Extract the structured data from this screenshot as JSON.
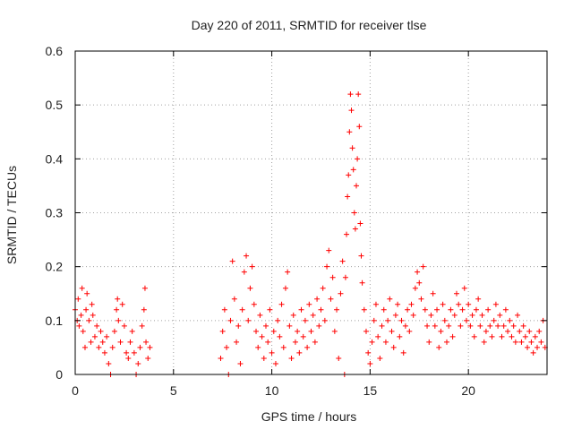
{
  "chart_data": {
    "type": "scatter",
    "title": "Day 220 of 2011, SRMTID for receiver tlse",
    "xlabel": "GPS time / hours",
    "ylabel": "SRMTID / TECUs",
    "xlim": [
      0,
      24
    ],
    "ylim": [
      0,
      0.6
    ],
    "xticks": [
      0,
      5,
      10,
      15,
      20
    ],
    "xtick_labels": [
      "0",
      "5",
      "10",
      "15",
      "20"
    ],
    "yticks": [
      0,
      0.1,
      0.2,
      0.3,
      0.4,
      0.5,
      0.6
    ],
    "ytick_labels": [
      "0",
      "0.1",
      "0.2",
      "0.3",
      "0.4",
      "0.5",
      "0.6"
    ],
    "grid": true,
    "marker": "+",
    "color": "#ff0000",
    "series": [
      {
        "name": "tlse",
        "points": [
          [
            0.0,
            0.12
          ],
          [
            0.1,
            0.1
          ],
          [
            0.15,
            0.14
          ],
          [
            0.2,
            0.09
          ],
          [
            0.3,
            0.11
          ],
          [
            0.35,
            0.16
          ],
          [
            0.4,
            0.08
          ],
          [
            0.5,
            0.05
          ],
          [
            0.55,
            0.12
          ],
          [
            0.6,
            0.15
          ],
          [
            0.7,
            0.1
          ],
          [
            0.8,
            0.06
          ],
          [
            0.85,
            0.13
          ],
          [
            0.9,
            0.11
          ],
          [
            1.0,
            0.07
          ],
          [
            1.1,
            0.09
          ],
          [
            1.2,
            0.05
          ],
          [
            1.3,
            0.08
          ],
          [
            1.4,
            0.06
          ],
          [
            1.5,
            0.04
          ],
          [
            1.6,
            0.07
          ],
          [
            1.7,
            0.02
          ],
          [
            1.8,
            0.0
          ],
          [
            1.9,
            0.05
          ],
          [
            2.0,
            0.08
          ],
          [
            2.1,
            0.12
          ],
          [
            2.15,
            0.14
          ],
          [
            2.2,
            0.1
          ],
          [
            2.3,
            0.06
          ],
          [
            2.4,
            0.13
          ],
          [
            2.5,
            0.09
          ],
          [
            2.6,
            0.04
          ],
          [
            2.7,
            0.03
          ],
          [
            2.8,
            0.06
          ],
          [
            2.9,
            0.08
          ],
          [
            3.0,
            0.04
          ],
          [
            3.1,
            0.0
          ],
          [
            3.2,
            0.02
          ],
          [
            3.3,
            0.05
          ],
          [
            3.4,
            0.09
          ],
          [
            3.5,
            0.12
          ],
          [
            3.55,
            0.16
          ],
          [
            3.6,
            0.06
          ],
          [
            3.7,
            0.03
          ],
          [
            3.8,
            0.05
          ],
          [
            7.4,
            0.03
          ],
          [
            7.5,
            0.08
          ],
          [
            7.6,
            0.12
          ],
          [
            7.7,
            0.05
          ],
          [
            7.8,
            0.0
          ],
          [
            7.9,
            0.1
          ],
          [
            8.0,
            0.21
          ],
          [
            8.1,
            0.14
          ],
          [
            8.2,
            0.06
          ],
          [
            8.3,
            0.09
          ],
          [
            8.4,
            0.02
          ],
          [
            8.5,
            0.12
          ],
          [
            8.6,
            0.19
          ],
          [
            8.7,
            0.22
          ],
          [
            8.8,
            0.1
          ],
          [
            8.9,
            0.16
          ],
          [
            9.0,
            0.2
          ],
          [
            9.1,
            0.13
          ],
          [
            9.2,
            0.08
          ],
          [
            9.3,
            0.05
          ],
          [
            9.4,
            0.11
          ],
          [
            9.5,
            0.07
          ],
          [
            9.6,
            0.03
          ],
          [
            9.7,
            0.09
          ],
          [
            9.8,
            0.06
          ],
          [
            9.9,
            0.12
          ],
          [
            10.0,
            0.04
          ],
          [
            10.1,
            0.08
          ],
          [
            10.2,
            0.02
          ],
          [
            10.3,
            0.1
          ],
          [
            10.4,
            0.07
          ],
          [
            10.5,
            0.13
          ],
          [
            10.6,
            0.05
          ],
          [
            10.7,
            0.16
          ],
          [
            10.8,
            0.19
          ],
          [
            10.9,
            0.09
          ],
          [
            11.0,
            0.03
          ],
          [
            11.1,
            0.11
          ],
          [
            11.2,
            0.06
          ],
          [
            11.3,
            0.08
          ],
          [
            11.4,
            0.04
          ],
          [
            11.5,
            0.12
          ],
          [
            11.6,
            0.07
          ],
          [
            11.7,
            0.1
          ],
          [
            11.8,
            0.05
          ],
          [
            11.9,
            0.13
          ],
          [
            12.0,
            0.08
          ],
          [
            12.1,
            0.11
          ],
          [
            12.2,
            0.06
          ],
          [
            12.3,
            0.14
          ],
          [
            12.4,
            0.09
          ],
          [
            12.5,
            0.12
          ],
          [
            12.6,
            0.16
          ],
          [
            12.7,
            0.1
          ],
          [
            12.8,
            0.2
          ],
          [
            12.9,
            0.23
          ],
          [
            13.0,
            0.14
          ],
          [
            13.1,
            0.18
          ],
          [
            13.2,
            0.08
          ],
          [
            13.3,
            0.12
          ],
          [
            13.4,
            0.03
          ],
          [
            13.5,
            0.15
          ],
          [
            13.6,
            0.21
          ],
          [
            13.7,
            0.0
          ],
          [
            13.75,
            0.18
          ],
          [
            13.8,
            0.26
          ],
          [
            13.85,
            0.33
          ],
          [
            13.9,
            0.37
          ],
          [
            13.95,
            0.45
          ],
          [
            14.0,
            0.52
          ],
          [
            14.05,
            0.49
          ],
          [
            14.1,
            0.42
          ],
          [
            14.15,
            0.38
          ],
          [
            14.2,
            0.3
          ],
          [
            14.25,
            0.27
          ],
          [
            14.3,
            0.35
          ],
          [
            14.35,
            0.4
          ],
          [
            14.4,
            0.52
          ],
          [
            14.45,
            0.46
          ],
          [
            14.5,
            0.28
          ],
          [
            14.55,
            0.22
          ],
          [
            14.6,
            0.17
          ],
          [
            14.7,
            0.12
          ],
          [
            14.8,
            0.08
          ],
          [
            14.9,
            0.04
          ],
          [
            15.0,
            0.02
          ],
          [
            15.1,
            0.06
          ],
          [
            15.2,
            0.1
          ],
          [
            15.3,
            0.13
          ],
          [
            15.4,
            0.07
          ],
          [
            15.5,
            0.03
          ],
          [
            15.6,
            0.09
          ],
          [
            15.7,
            0.12
          ],
          [
            15.8,
            0.06
          ],
          [
            15.9,
            0.1
          ],
          [
            16.0,
            0.14
          ],
          [
            16.1,
            0.08
          ],
          [
            16.2,
            0.05
          ],
          [
            16.3,
            0.11
          ],
          [
            16.4,
            0.13
          ],
          [
            16.5,
            0.07
          ],
          [
            16.6,
            0.1
          ],
          [
            16.7,
            0.04
          ],
          [
            16.8,
            0.09
          ],
          [
            16.9,
            0.12
          ],
          [
            17.0,
            0.08
          ],
          [
            17.1,
            0.13
          ],
          [
            17.2,
            0.11
          ],
          [
            17.3,
            0.16
          ],
          [
            17.4,
            0.19
          ],
          [
            17.5,
            0.17
          ],
          [
            17.6,
            0.14
          ],
          [
            17.7,
            0.2
          ],
          [
            17.8,
            0.12
          ],
          [
            17.9,
            0.09
          ],
          [
            18.0,
            0.06
          ],
          [
            18.1,
            0.11
          ],
          [
            18.2,
            0.15
          ],
          [
            18.3,
            0.09
          ],
          [
            18.4,
            0.12
          ],
          [
            18.5,
            0.05
          ],
          [
            18.6,
            0.08
          ],
          [
            18.7,
            0.13
          ],
          [
            18.8,
            0.1
          ],
          [
            18.9,
            0.06
          ],
          [
            19.0,
            0.09
          ],
          [
            19.1,
            0.12
          ],
          [
            19.2,
            0.07
          ],
          [
            19.3,
            0.11
          ],
          [
            19.4,
            0.15
          ],
          [
            19.5,
            0.13
          ],
          [
            19.6,
            0.09
          ],
          [
            19.7,
            0.12
          ],
          [
            19.8,
            0.16
          ],
          [
            19.9,
            0.1
          ],
          [
            20.0,
            0.13
          ],
          [
            20.1,
            0.09
          ],
          [
            20.2,
            0.11
          ],
          [
            20.3,
            0.07
          ],
          [
            20.4,
            0.12
          ],
          [
            20.5,
            0.14
          ],
          [
            20.6,
            0.09
          ],
          [
            20.7,
            0.11
          ],
          [
            20.8,
            0.06
          ],
          [
            20.9,
            0.08
          ],
          [
            21.0,
            0.12
          ],
          [
            21.1,
            0.09
          ],
          [
            21.2,
            0.07
          ],
          [
            21.3,
            0.1
          ],
          [
            21.4,
            0.13
          ],
          [
            21.5,
            0.09
          ],
          [
            21.6,
            0.11
          ],
          [
            21.7,
            0.07
          ],
          [
            21.8,
            0.09
          ],
          [
            21.9,
            0.12
          ],
          [
            22.0,
            0.08
          ],
          [
            22.1,
            0.1
          ],
          [
            22.2,
            0.07
          ],
          [
            22.3,
            0.09
          ],
          [
            22.4,
            0.06
          ],
          [
            22.5,
            0.11
          ],
          [
            22.6,
            0.08
          ],
          [
            22.7,
            0.06
          ],
          [
            22.8,
            0.09
          ],
          [
            22.9,
            0.07
          ],
          [
            23.0,
            0.05
          ],
          [
            23.1,
            0.08
          ],
          [
            23.2,
            0.06
          ],
          [
            23.3,
            0.04
          ],
          [
            23.4,
            0.07
          ],
          [
            23.5,
            0.05
          ],
          [
            23.6,
            0.08
          ],
          [
            23.7,
            0.06
          ],
          [
            23.8,
            0.1
          ],
          [
            23.9,
            0.05
          ]
        ]
      }
    ]
  }
}
